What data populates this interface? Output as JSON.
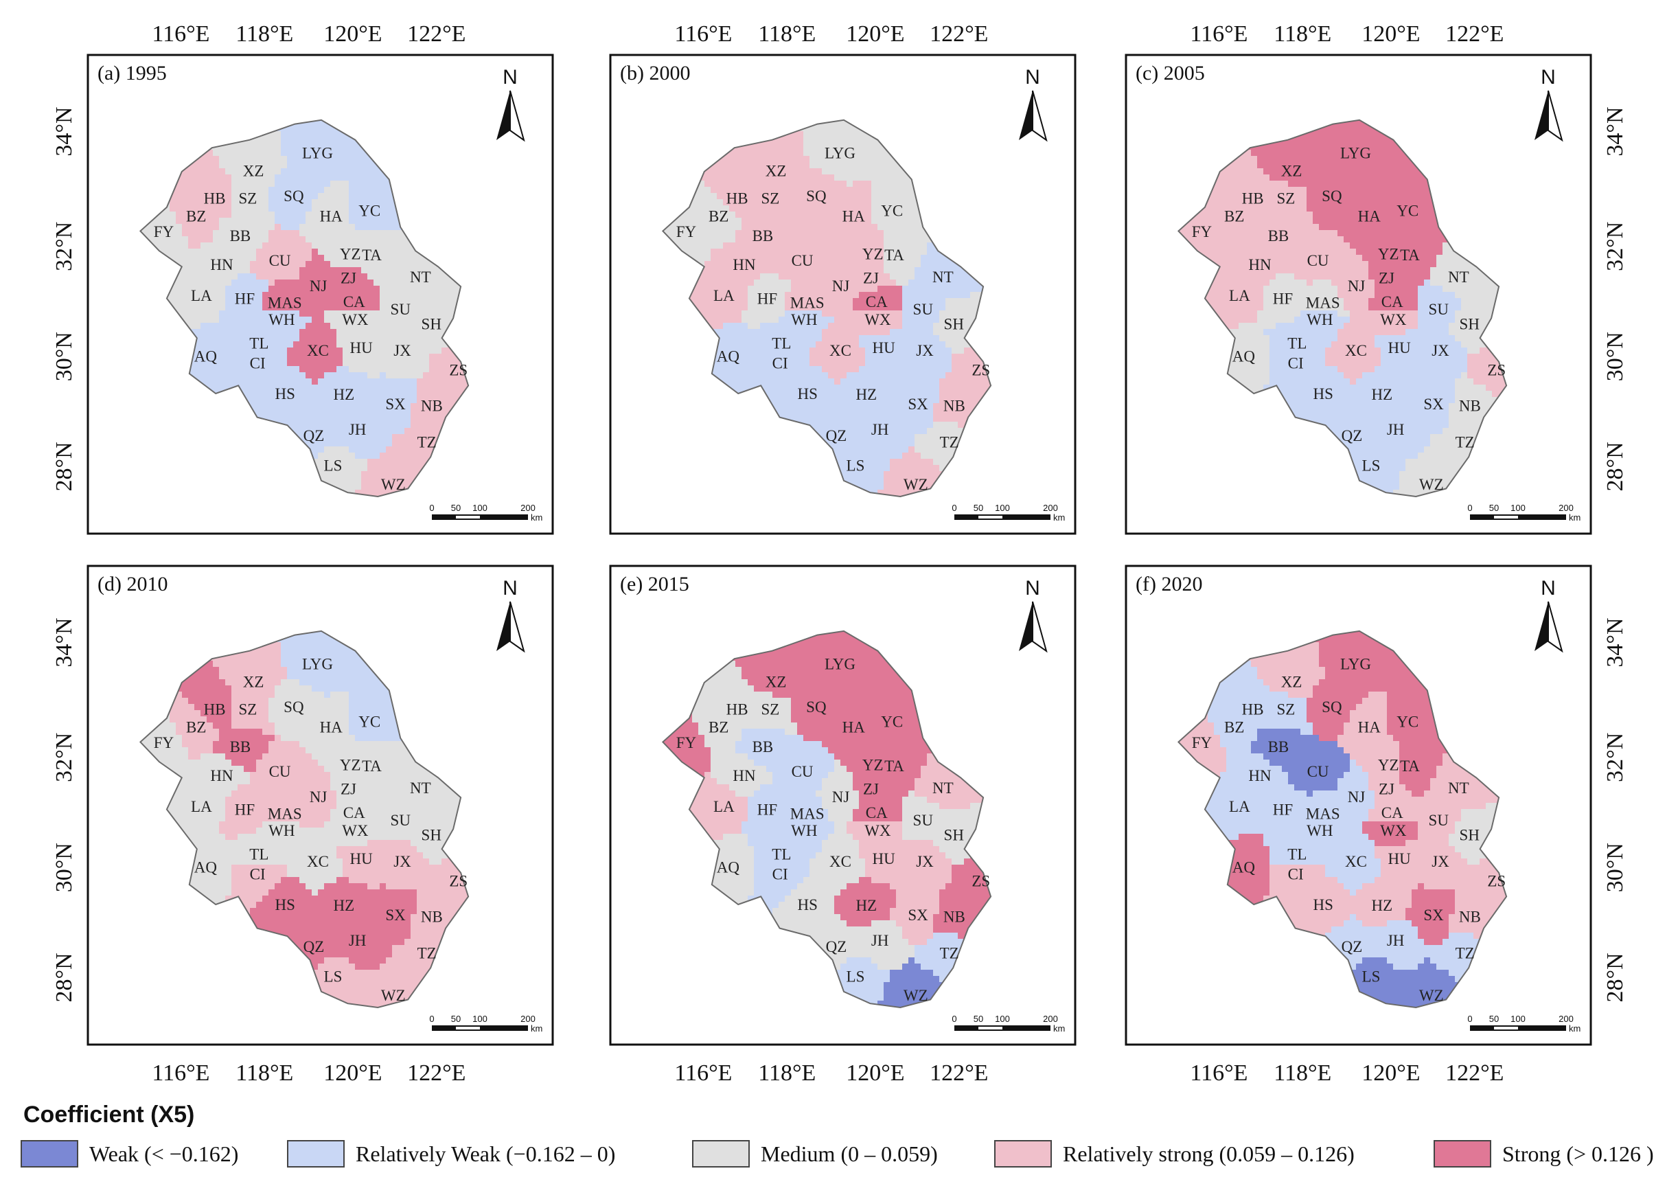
{
  "axes": {
    "lon_ticks": [
      "116°E",
      "118°E",
      "120°E",
      "122°E"
    ],
    "lat_ticks": [
      "34°N",
      "32°N",
      "30°N",
      "28°N"
    ]
  },
  "north_label": "N",
  "scale_bar": {
    "ticks": [
      "0",
      "50",
      "100",
      "200"
    ],
    "unit": "km"
  },
  "panels": [
    {
      "id": "a",
      "title": "(a) 1995"
    },
    {
      "id": "b",
      "title": "(b) 2000"
    },
    {
      "id": "c",
      "title": "(c) 2005"
    },
    {
      "id": "d",
      "title": "(d) 2010"
    },
    {
      "id": "e",
      "title": "(e) 2015"
    },
    {
      "id": "f",
      "title": "(f) 2020"
    }
  ],
  "cities": [
    "LYG",
    "XZ",
    "SZ",
    "HB",
    "SQ",
    "BZ",
    "HA",
    "YC",
    "FY",
    "BB",
    "HN",
    "CU",
    "YZ",
    "TA",
    "NT",
    "LA",
    "HF",
    "MAS",
    "NJ",
    "ZJ",
    "CA",
    "SU",
    "WH",
    "WX",
    "SH",
    "TL",
    "AQ",
    "CI",
    "XC",
    "HU",
    "JX",
    "ZS",
    "HS",
    "HZ",
    "SX",
    "NB",
    "QZ",
    "JH",
    "TZ",
    "LS",
    "WZ"
  ],
  "classes": {
    "panel_a": {
      "LYG": 1,
      "XZ": 2,
      "SZ": 2,
      "HB": 3,
      "SQ": 1,
      "BZ": 3,
      "HA": 2,
      "YC": 1,
      "FY": 2,
      "BB": 2,
      "HN": 2,
      "CU": 3,
      "YZ": 2,
      "TA": 2,
      "NT": 2,
      "LA": 2,
      "HF": 1,
      "MAS": 4,
      "NJ": 4,
      "ZJ": 4,
      "CA": 4,
      "SU": 2,
      "WH": 1,
      "WX": 2,
      "SH": 2,
      "TL": 1,
      "AQ": 1,
      "CI": 1,
      "XC": 4,
      "HU": 2,
      "JX": 2,
      "ZS": 3,
      "HS": 1,
      "HZ": 1,
      "SX": 1,
      "NB": 3,
      "QZ": 1,
      "JH": 1,
      "TZ": 3,
      "LS": 2,
      "WZ": 3
    },
    "panel_b": {
      "LYG": 2,
      "XZ": 3,
      "SZ": 3,
      "HB": 3,
      "SQ": 3,
      "BZ": 2,
      "HA": 3,
      "YC": 2,
      "FY": 2,
      "BB": 3,
      "HN": 3,
      "CU": 3,
      "YZ": 3,
      "TA": 2,
      "NT": 1,
      "LA": 3,
      "HF": 2,
      "MAS": 3,
      "NJ": 3,
      "ZJ": 3,
      "CA": 4,
      "SU": 1,
      "WH": 1,
      "WX": 3,
      "SH": 2,
      "TL": 1,
      "AQ": 1,
      "CI": 1,
      "XC": 3,
      "HU": 1,
      "JX": 1,
      "ZS": 3,
      "HS": 1,
      "HZ": 1,
      "SX": 1,
      "NB": 3,
      "QZ": 1,
      "JH": 1,
      "TZ": 2,
      "LS": 1,
      "WZ": 3
    },
    "panel_c": {
      "LYG": 4,
      "XZ": 4,
      "SZ": 3,
      "HB": 3,
      "SQ": 4,
      "BZ": 3,
      "HA": 4,
      "YC": 4,
      "FY": 3,
      "BB": 3,
      "HN": 3,
      "CU": 3,
      "YZ": 4,
      "TA": 4,
      "NT": 2,
      "LA": 3,
      "HF": 2,
      "MAS": 2,
      "NJ": 3,
      "ZJ": 4,
      "CA": 4,
      "SU": 1,
      "WH": 1,
      "WX": 3,
      "SH": 2,
      "TL": 1,
      "AQ": 2,
      "CI": 1,
      "XC": 3,
      "HU": 1,
      "JX": 1,
      "ZS": 3,
      "HS": 1,
      "HZ": 1,
      "SX": 1,
      "NB": 2,
      "QZ": 1,
      "JH": 1,
      "TZ": 2,
      "LS": 1,
      "WZ": 2
    },
    "panel_d": {
      "LYG": 1,
      "XZ": 3,
      "SZ": 3,
      "HB": 4,
      "SQ": 2,
      "BZ": 3,
      "HA": 2,
      "YC": 1,
      "FY": 2,
      "BB": 4,
      "HN": 2,
      "CU": 3,
      "YZ": 2,
      "TA": 2,
      "NT": 2,
      "LA": 2,
      "HF": 3,
      "MAS": 3,
      "NJ": 3,
      "ZJ": 2,
      "CA": 2,
      "SU": 2,
      "WH": 2,
      "WX": 2,
      "SH": 2,
      "TL": 2,
      "AQ": 2,
      "CI": 3,
      "XC": 2,
      "HU": 3,
      "JX": 3,
      "ZS": 3,
      "HS": 4,
      "HZ": 4,
      "SX": 4,
      "NB": 3,
      "QZ": 4,
      "JH": 4,
      "TZ": 3,
      "LS": 3,
      "WZ": 3
    },
    "panel_e": {
      "LYG": 4,
      "XZ": 4,
      "SZ": 2,
      "HB": 2,
      "SQ": 4,
      "BZ": 2,
      "HA": 4,
      "YC": 4,
      "FY": 4,
      "BB": 1,
      "HN": 2,
      "CU": 1,
      "YZ": 4,
      "TA": 4,
      "NT": 3,
      "LA": 3,
      "HF": 1,
      "MAS": 1,
      "NJ": 2,
      "ZJ": 4,
      "CA": 4,
      "SU": 2,
      "WH": 1,
      "WX": 3,
      "SH": 2,
      "TL": 1,
      "AQ": 2,
      "CI": 1,
      "XC": 2,
      "HU": 3,
      "JX": 3,
      "ZS": 4,
      "HS": 2,
      "HZ": 4,
      "SX": 3,
      "NB": 4,
      "QZ": 2,
      "JH": 2,
      "TZ": 1,
      "LS": 1,
      "WZ": 0
    },
    "panel_f": {
      "LYG": 4,
      "XZ": 3,
      "SZ": 1,
      "HB": 1,
      "SQ": 4,
      "BZ": 1,
      "HA": 3,
      "YC": 4,
      "FY": 3,
      "BB": 0,
      "HN": 1,
      "CU": 0,
      "YZ": 3,
      "TA": 4,
      "NT": 3,
      "LA": 1,
      "HF": 1,
      "MAS": 1,
      "NJ": 1,
      "ZJ": 3,
      "CA": 3,
      "SU": 3,
      "WH": 1,
      "WX": 4,
      "SH": 2,
      "TL": 1,
      "AQ": 4,
      "CI": 3,
      "XC": 1,
      "HU": 3,
      "JX": 3,
      "ZS": 3,
      "HS": 3,
      "HZ": 3,
      "SX": 4,
      "NB": 3,
      "QZ": 1,
      "JH": 1,
      "TZ": 1,
      "LS": 0,
      "WZ": 0
    }
  },
  "legend": {
    "title": "Coefficient (X5)",
    "items": [
      {
        "label": "Weak (< −0.162)",
        "color": "#7b88d4"
      },
      {
        "label": "Relatively Weak (−0.162 – 0)",
        "color": "#c9d7f5"
      },
      {
        "label": "Medium (0 – 0.059)",
        "color": "#e0e0e0"
      },
      {
        "label": "Relatively strong (0.059 – 0.126)",
        "color": "#f0c0cb"
      },
      {
        "label": "Strong (> 0.126 )",
        "color": "#e07896"
      }
    ]
  }
}
